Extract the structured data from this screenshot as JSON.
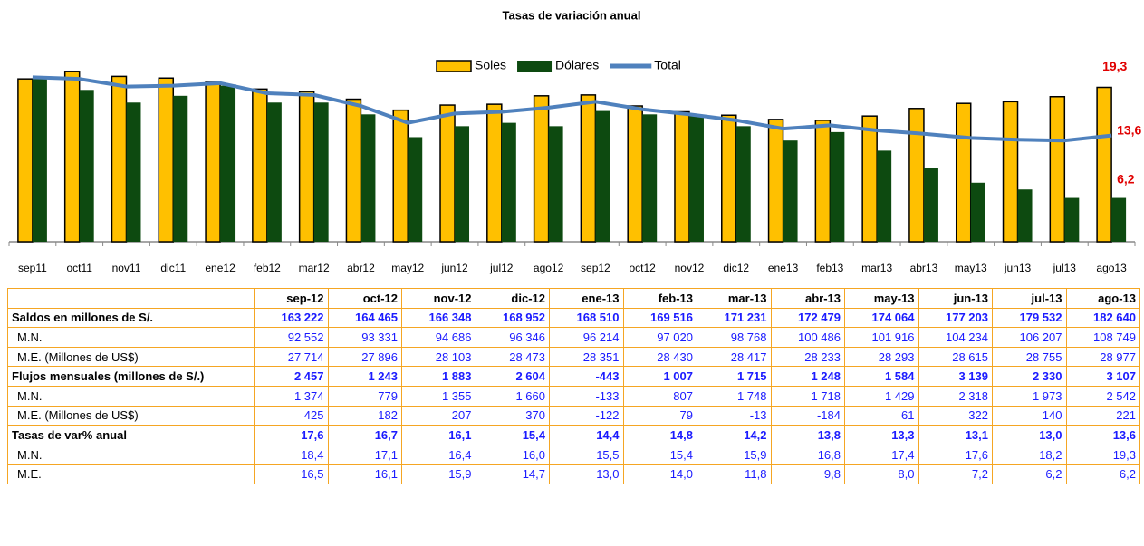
{
  "chart_data": {
    "type": "bar_line",
    "title": "Tasas de variación anual",
    "categories": [
      "sep11",
      "oct11",
      "nov11",
      "dic11",
      "ene12",
      "feb12",
      "mar12",
      "abr12",
      "may12",
      "jun12",
      "jul12",
      "ago12",
      "sep12",
      "oct12",
      "nov12",
      "dic12",
      "ene13",
      "feb13",
      "mar13",
      "abr13",
      "may13",
      "jun13",
      "jul13",
      "ago13"
    ],
    "ylim": [
      1,
      21.5
    ],
    "series": [
      {
        "name": "Soles",
        "kind": "bar",
        "color": "#ffc000",
        "values": [
          20.3,
          21.2,
          20.6,
          20.4,
          19.9,
          19.1,
          18.8,
          17.9,
          16.6,
          17.2,
          17.3,
          18.3,
          18.4,
          17.1,
          16.4,
          16.0,
          15.5,
          15.4,
          15.9,
          16.8,
          17.4,
          17.6,
          18.2,
          19.3
        ],
        "value_labels": [
          null,
          null,
          null,
          null,
          null,
          null,
          null,
          null,
          null,
          null,
          null,
          null,
          null,
          null,
          null,
          null,
          null,
          null,
          null,
          null,
          null,
          null,
          null,
          "19,3"
        ]
      },
      {
        "name": "Dólares",
        "kind": "bar",
        "color": "#0d4a10",
        "values": [
          20.3,
          19.0,
          17.5,
          18.3,
          19.5,
          17.5,
          17.5,
          16.1,
          13.4,
          14.7,
          15.1,
          14.7,
          16.5,
          16.1,
          15.9,
          14.7,
          13.0,
          14.0,
          11.8,
          9.8,
          8.0,
          7.2,
          6.2,
          6.2
        ],
        "value_labels": [
          null,
          null,
          null,
          null,
          null,
          null,
          null,
          null,
          null,
          null,
          null,
          null,
          null,
          null,
          null,
          null,
          null,
          null,
          null,
          null,
          null,
          null,
          null,
          "6,2"
        ]
      },
      {
        "name": "Total",
        "kind": "line",
        "color": "#4f81bd",
        "values": [
          20.5,
          20.3,
          19.4,
          19.5,
          19.8,
          18.6,
          18.4,
          17.1,
          15.1,
          16.2,
          16.4,
          16.9,
          17.6,
          16.7,
          16.1,
          15.4,
          14.4,
          14.8,
          14.2,
          13.8,
          13.3,
          13.1,
          13.0,
          13.6
        ],
        "value_labels": [
          null,
          null,
          null,
          null,
          null,
          null,
          null,
          null,
          null,
          null,
          null,
          null,
          null,
          null,
          null,
          null,
          null,
          null,
          null,
          null,
          null,
          null,
          null,
          "13,6"
        ]
      }
    ]
  },
  "table": {
    "header": [
      "sep-12",
      "oct-12",
      "nov-12",
      "dic-12",
      "ene-13",
      "feb-13",
      "mar-13",
      "abr-13",
      "may-13",
      "jun-13",
      "jul-13",
      "ago-13"
    ],
    "rows": [
      {
        "label": "Saldos en millones de S/.",
        "bold": true,
        "values": [
          "163 222",
          "164 465",
          "166 348",
          "168 952",
          "168 510",
          "169 516",
          "171 231",
          "172 479",
          "174 064",
          "177 203",
          "179 532",
          "182 640"
        ]
      },
      {
        "label": "M.N.",
        "bold": false,
        "values": [
          "92 552",
          "93 331",
          "94 686",
          "96 346",
          "96 214",
          "97 020",
          "98 768",
          "100 486",
          "101 916",
          "104 234",
          "106 207",
          "108 749"
        ]
      },
      {
        "label": "M.E. (Millones de US$)",
        "bold": false,
        "values": [
          "27 714",
          "27 896",
          "28 103",
          "28 473",
          "28 351",
          "28 430",
          "28 417",
          "28 233",
          "28 293",
          "28 615",
          "28 755",
          "28 977"
        ]
      },
      {
        "label": "Flujos mensuales (millones de S/.)",
        "bold": true,
        "values": [
          "2 457",
          "1 243",
          "1 883",
          "2 604",
          "-443",
          "1 007",
          "1 715",
          "1 248",
          "1 584",
          "3 139",
          "2 330",
          "3 107"
        ]
      },
      {
        "label": "M.N.",
        "bold": false,
        "values": [
          "1 374",
          "779",
          "1 355",
          "1 660",
          "-133",
          "807",
          "1 748",
          "1 718",
          "1 429",
          "2 318",
          "1 973",
          "2 542"
        ]
      },
      {
        "label": "M.E. (Millones de US$)",
        "bold": false,
        "values": [
          "425",
          "182",
          "207",
          "370",
          "-122",
          "79",
          "-13",
          "-184",
          "61",
          "322",
          "140",
          "221"
        ]
      },
      {
        "label": "Tasas de var% anual",
        "bold": true,
        "values": [
          "17,6",
          "16,7",
          "16,1",
          "15,4",
          "14,4",
          "14,8",
          "14,2",
          "13,8",
          "13,3",
          "13,1",
          "13,0",
          "13,6"
        ]
      },
      {
        "label": "M.N.",
        "bold": false,
        "values": [
          "18,4",
          "17,1",
          "16,4",
          "16,0",
          "15,5",
          "15,4",
          "15,9",
          "16,8",
          "17,4",
          "17,6",
          "18,2",
          "19,3"
        ]
      },
      {
        "label": "M.E.",
        "bold": false,
        "values": [
          "16,5",
          "16,1",
          "15,9",
          "14,7",
          "13,0",
          "14,0",
          "11,8",
          "9,8",
          "8,0",
          "7,2",
          "6,2",
          "6,2"
        ]
      }
    ]
  }
}
